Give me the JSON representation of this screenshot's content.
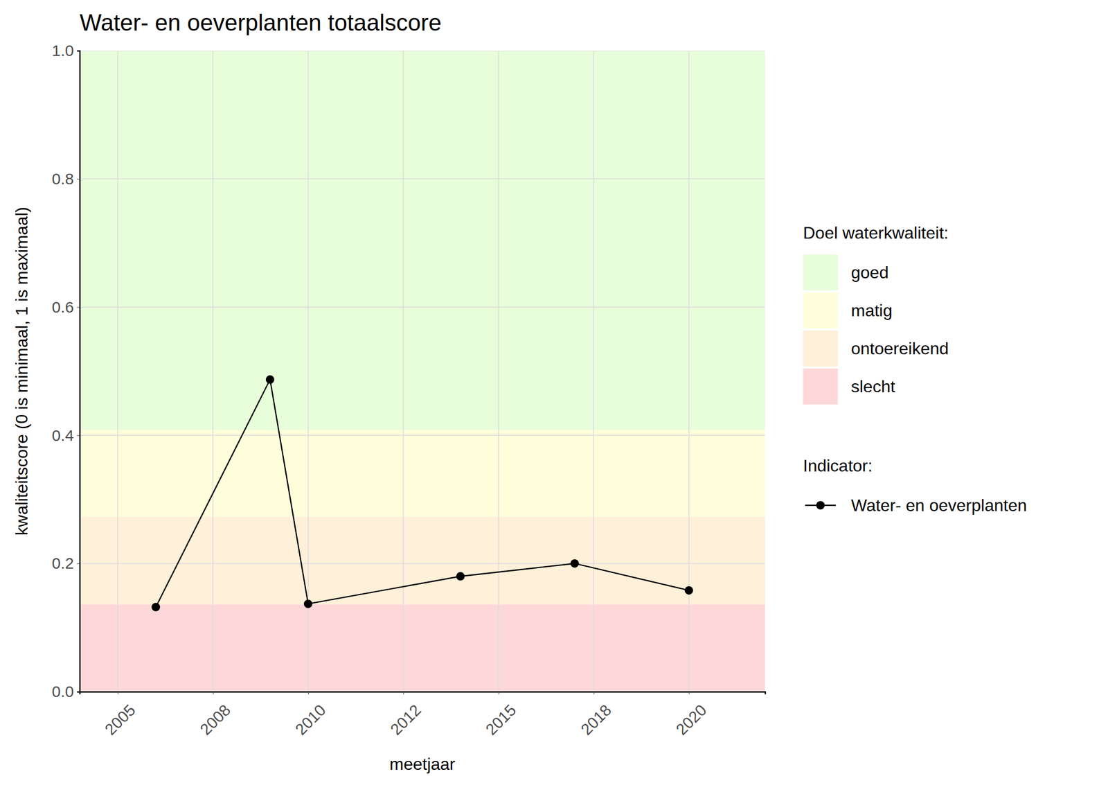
{
  "chart_data": {
    "type": "line",
    "title": "Water- en oeverplanten totaalscore",
    "x_label": "meetjaar",
    "y_label": "kwaliteitscore (0 is minimaal, 1 is maximaal)",
    "x": [
      2006,
      2009,
      2010,
      2014,
      2017,
      2020
    ],
    "series": [
      {
        "name": "Water- en oeverplanten",
        "color": "#000000",
        "marker": "circle",
        "line_style": "solid",
        "values": [
          0.132,
          0.487,
          0.137,
          0.18,
          0.2,
          0.158
        ]
      }
    ],
    "xlim": [
      2004,
      2022
    ],
    "xticks": [
      2005,
      {
        "value": 2007.5,
        "label": "2008"
      },
      2010,
      {
        "value": 2012.5,
        "label": "2012"
      },
      2015,
      {
        "value": 2017.5,
        "label": "2018"
      },
      2020
    ],
    "ylim": [
      0,
      1
    ],
    "yticks": [
      {
        "value": 0,
        "label": "0.0"
      },
      0.2,
      0.4,
      0.6,
      0.8,
      {
        "value": 1,
        "label": "1.0"
      }
    ],
    "grid": true,
    "band_legend_title": "Doel waterkwaliteit:",
    "series_legend_title": "Indicator:",
    "bands": [
      {
        "name": "goed",
        "from": 0.408,
        "to": 1.0,
        "color": "#e8fdd9"
      },
      {
        "name": "matig",
        "from": 0.273,
        "to": 0.408,
        "color": "#fefedb"
      },
      {
        "name": "ontoereikend",
        "from": 0.136,
        "to": 0.273,
        "color": "#fef0d9"
      },
      {
        "name": "slecht",
        "from": 0.0,
        "to": 0.136,
        "color": "#fed8d9"
      }
    ]
  }
}
